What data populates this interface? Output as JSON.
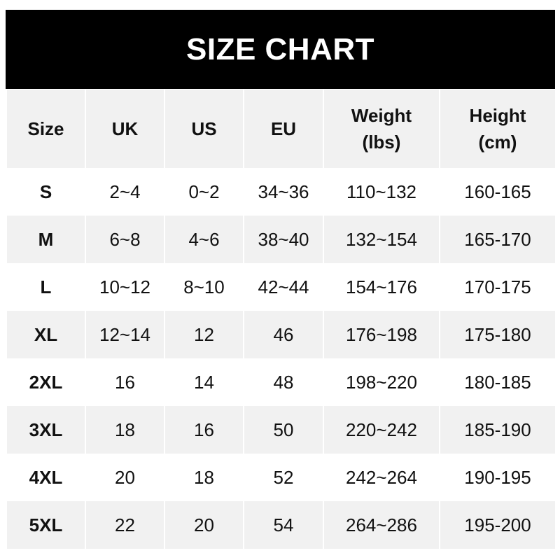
{
  "title": "SIZE CHART",
  "headers": [
    [
      "Size",
      ""
    ],
    [
      "UK",
      ""
    ],
    [
      "US",
      ""
    ],
    [
      "EU",
      ""
    ],
    [
      "Weight",
      "(lbs)"
    ],
    [
      "Height",
      "(cm)"
    ]
  ],
  "rows": [
    [
      "S",
      "2~4",
      "0~2",
      "34~36",
      "110~132",
      "160-165"
    ],
    [
      "M",
      "6~8",
      "4~6",
      "38~40",
      "132~154",
      "165-170"
    ],
    [
      "L",
      "10~12",
      "8~10",
      "42~44",
      "154~176",
      "170-175"
    ],
    [
      "XL",
      "12~14",
      "12",
      "46",
      "176~198",
      "175-180"
    ],
    [
      "2XL",
      "16",
      "14",
      "48",
      "198~220",
      "180-185"
    ],
    [
      "3XL",
      "18",
      "16",
      "50",
      "220~242",
      "185-190"
    ],
    [
      "4XL",
      "20",
      "18",
      "52",
      "242~264",
      "190-195"
    ],
    [
      "5XL",
      "22",
      "20",
      "54",
      "264~286",
      "195-200"
    ]
  ],
  "colors": {
    "header_bg": "#000000",
    "stripe": "#f1f1f1",
    "text": "#111111"
  }
}
